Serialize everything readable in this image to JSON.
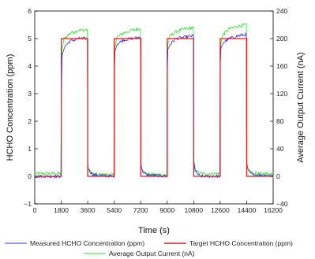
{
  "chart_data": {
    "type": "line",
    "xlabel": "Time (s)",
    "ylabel_left": "HCHO Concentration (ppm)",
    "ylabel_right": "Average Output Current (nA)",
    "xlim": [
      0,
      16200
    ],
    "ylim_left": [
      -1,
      6
    ],
    "ylim_right": [
      -40,
      240
    ],
    "xticks": [
      0,
      1800,
      3600,
      5400,
      7200,
      9000,
      10800,
      12600,
      14400,
      16200
    ],
    "yticks_left": [
      -1,
      0,
      1,
      2,
      3,
      4,
      5,
      6
    ],
    "yticks_right": [
      -40,
      0,
      40,
      80,
      120,
      160,
      200,
      240
    ],
    "grid": false,
    "legend_position": "bottom",
    "series": [
      {
        "name": "Measured HCHO Concentration (ppm)",
        "color": "#3333dd",
        "axis": "left",
        "style": "noisy line",
        "x": [
          0,
          1780,
          1800,
          1850,
          2000,
          2400,
          3000,
          3580,
          3600,
          3700,
          4000,
          5380,
          5400,
          5450,
          5600,
          6000,
          6600,
          7180,
          7200,
          7300,
          7600,
          8980,
          9000,
          9050,
          9200,
          9600,
          10200,
          10780,
          10800,
          10900,
          11200,
          12580,
          12600,
          12650,
          12800,
          13200,
          13800,
          14380,
          14400,
          14500,
          14800,
          16200
        ],
        "y": [
          0.0,
          0.0,
          2.8,
          4.3,
          4.7,
          4.9,
          5.0,
          5.0,
          0.4,
          0.2,
          0.05,
          0.0,
          3.5,
          4.6,
          4.8,
          4.95,
          5.0,
          5.05,
          0.5,
          0.2,
          0.05,
          0.0,
          3.6,
          4.6,
          4.8,
          5.0,
          5.05,
          5.1,
          0.6,
          0.2,
          0.0,
          0.0,
          3.9,
          4.6,
          4.85,
          5.0,
          5.1,
          5.15,
          0.4,
          0.2,
          0.05,
          0.05
        ]
      },
      {
        "name": "Target HCHO Concentration (ppm)",
        "color": "#dd2222",
        "axis": "left",
        "style": "step",
        "x": [
          0,
          1800,
          1800,
          3600,
          3600,
          5400,
          5400,
          7200,
          7200,
          9000,
          9000,
          10800,
          10800,
          12600,
          12600,
          14400,
          14400,
          16200
        ],
        "y": [
          0,
          0,
          5,
          5,
          0,
          0,
          5,
          5,
          0,
          0,
          5,
          5,
          0,
          0,
          5,
          5,
          0,
          0
        ]
      },
      {
        "name": "Average Output Current (nA)",
        "color": "#33dd33",
        "axis": "right",
        "style": "noisy line",
        "x": [
          0,
          1780,
          1800,
          1850,
          2000,
          2400,
          3000,
          3580,
          3600,
          3700,
          4000,
          5380,
          5400,
          5450,
          5600,
          6000,
          6600,
          7180,
          7200,
          7300,
          7600,
          8980,
          9000,
          9050,
          9200,
          9600,
          10200,
          10780,
          10800,
          10900,
          11200,
          12580,
          12600,
          12650,
          12800,
          13200,
          13800,
          14380,
          14400,
          14500,
          14800,
          16200
        ],
        "y": [
          4,
          4,
          130,
          185,
          200,
          208,
          212,
          213,
          16,
          8,
          3,
          2,
          145,
          190,
          202,
          208,
          212,
          215,
          20,
          8,
          3,
          2,
          150,
          192,
          204,
          210,
          214,
          216,
          24,
          10,
          4,
          4,
          160,
          194,
          206,
          214,
          218,
          220,
          20,
          10,
          4,
          4
        ]
      }
    ]
  }
}
